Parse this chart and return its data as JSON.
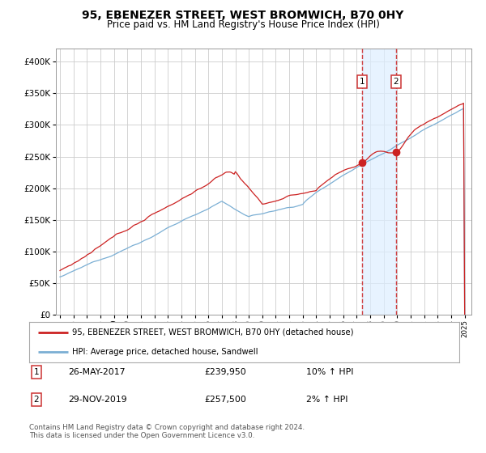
{
  "title": "95, EBENEZER STREET, WEST BROMWICH, B70 0HY",
  "subtitle": "Price paid vs. HM Land Registry's House Price Index (HPI)",
  "title_fontsize": 10,
  "subtitle_fontsize": 8.5,
  "ylabel_ticks": [
    "£0",
    "£50K",
    "£100K",
    "£150K",
    "£200K",
    "£250K",
    "£300K",
    "£350K",
    "£400K"
  ],
  "ytick_values": [
    0,
    50000,
    100000,
    150000,
    200000,
    250000,
    300000,
    350000,
    400000
  ],
  "ylim": [
    0,
    420000
  ],
  "xlim_start": 1994.7,
  "xlim_end": 2025.5,
  "sale1_date": 2017.41,
  "sale1_price": 239950,
  "sale2_date": 2019.91,
  "sale2_price": 257500,
  "legend_line1": "95, EBENEZER STREET, WEST BROMWICH, B70 0HY (detached house)",
  "legend_line2": "HPI: Average price, detached house, Sandwell",
  "footer": "Contains HM Land Registry data © Crown copyright and database right 2024.\nThis data is licensed under the Open Government Licence v3.0.",
  "hpi_line_color": "#7bafd4",
  "price_line_color": "#cc2222",
  "marker_color": "#cc2222",
  "shade_color": "#ddeeff",
  "dashed_line_color": "#cc2222",
  "background_color": "#ffffff",
  "grid_color": "#cccccc"
}
